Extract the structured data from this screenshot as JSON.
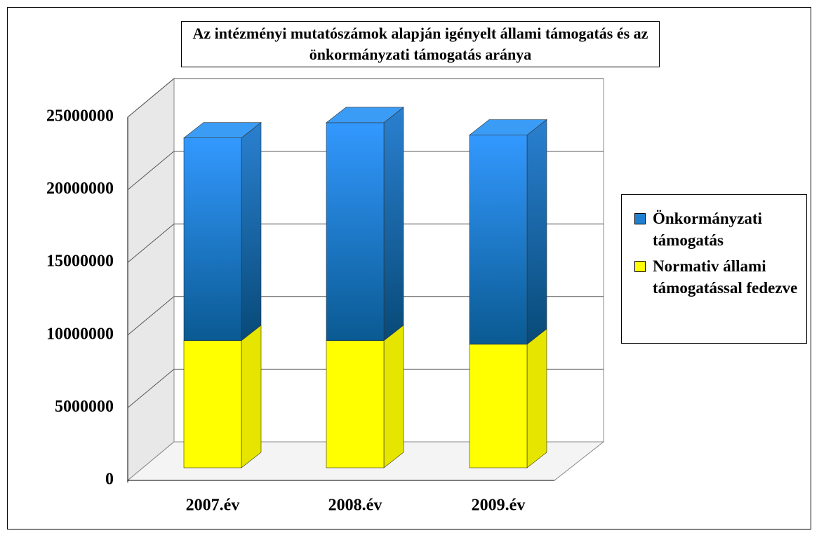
{
  "chart_data": {
    "type": "bar3d_stacked",
    "title": "Az intézményi mutatószámok alapján igényelt állami támogatás és az önkormányzati támogatás aránya",
    "categories": [
      "2007.év",
      "2008.év",
      "2009.év"
    ],
    "series": [
      {
        "name": "Önkormányzati támogatás",
        "color": "#1f7fd0",
        "values": [
          13950000,
          15000000,
          14400000
        ]
      },
      {
        "name": "Normativ állami támogatással fedezve",
        "color": "#ffff00",
        "values": [
          8750000,
          8750000,
          8500000
        ]
      }
    ],
    "ylim": [
      0,
      25000000
    ],
    "yticks": [
      0,
      5000000,
      10000000,
      15000000,
      20000000,
      25000000
    ],
    "grid": true,
    "legend": "right"
  }
}
